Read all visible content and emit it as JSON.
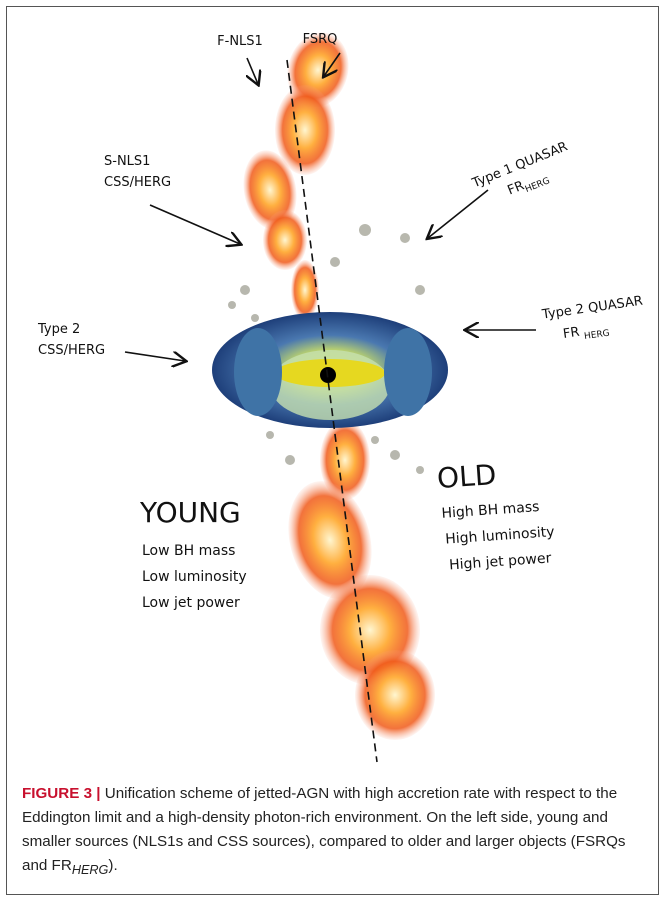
{
  "figure": {
    "labels": {
      "f_nls1": "F-NLS1",
      "fsrq": "FSRQ",
      "type1_quasar": {
        "title": "Type 1 QUASAR",
        "fr": "FR",
        "sub": "HERG"
      },
      "s_nls1": {
        "line1": "S-NLS1",
        "line2": "CSS/HERG"
      },
      "type2_quasar": {
        "title": "Type 2 QUASAR",
        "fr": "FR",
        "sub": "HERG"
      },
      "type2_css": {
        "line1": "Type 2",
        "line2": "CSS/HERG"
      },
      "young": {
        "title": "YOUNG",
        "lines": [
          "Low BH mass",
          "Low luminosity",
          "Low jet power"
        ]
      },
      "old": {
        "title": "OLD",
        "lines": [
          "High BH mass",
          "High luminosity",
          "High jet power"
        ]
      }
    },
    "caption": {
      "label": "FIGURE 3 |",
      "text": " Unification scheme of jetted-AGN with high accretion rate with respect to the Eddington limit and a high-density photon-rich environment. On the left side, young and smaller sources (NLS1s and CSS sources), compared to older and larger objects (FSRQs and FR",
      "sub": "HERG",
      "end": ")."
    }
  }
}
